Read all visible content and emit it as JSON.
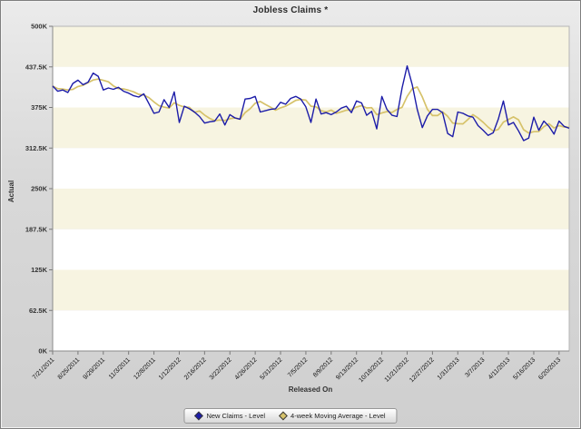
{
  "title": "Jobless Claims *",
  "x_axis_label": "Released On",
  "y_axis_label": "Actual",
  "colors": {
    "new_claims": "#1c1ca8",
    "moving_average": "#d6c26a",
    "band_fill": "#f7f4e1",
    "plot_bg": "#ffffff",
    "plot_border": "#b5b5b5",
    "axis": "#7a7a7a",
    "frame_bg": "#d9d9d9",
    "text": "#333333"
  },
  "legend": {
    "items": [
      {
        "label": "New Claims - Level",
        "color": "#1c1ca8"
      },
      {
        "label": "4-week Moving Average - Level",
        "color": "#d6c26a"
      }
    ]
  },
  "chart_data": {
    "type": "line",
    "title": "Jobless Claims *",
    "xlabel": "Released On",
    "ylabel": "Actual",
    "value_unit": "thousands (K)",
    "ylim": [
      0,
      500
    ],
    "y_ticks": [
      "0K",
      "62.5K",
      "125K",
      "187.5K",
      "250K",
      "312.5K",
      "375K",
      "437.5K",
      "500K"
    ],
    "y_tick_step": 62.5,
    "x_tick_every": 5,
    "grid": "horizontal-bands",
    "legend_position": "bottom",
    "x": [
      "7/21/2011",
      "7/28/2011",
      "8/4/2011",
      "8/11/2011",
      "8/18/2011",
      "8/25/2011",
      "9/1/2011",
      "9/8/2011",
      "9/15/2011",
      "9/22/2011",
      "9/29/2011",
      "10/6/2011",
      "10/13/2011",
      "10/20/2011",
      "10/27/2011",
      "11/3/2011",
      "11/10/2011",
      "11/17/2011",
      "11/24/2011",
      "12/1/2011",
      "12/8/2011",
      "12/15/2011",
      "12/22/2011",
      "12/29/2011",
      "1/5/2012",
      "1/12/2012",
      "1/19/2012",
      "1/26/2012",
      "2/2/2012",
      "2/9/2012",
      "2/16/2012",
      "2/23/2012",
      "3/1/2012",
      "3/8/2012",
      "3/15/2012",
      "3/22/2012",
      "3/29/2012",
      "4/5/2012",
      "4/12/2012",
      "4/19/2012",
      "4/26/2012",
      "5/3/2012",
      "5/10/2012",
      "5/17/2012",
      "5/24/2012",
      "5/31/2012",
      "6/7/2012",
      "6/14/2012",
      "6/21/2012",
      "6/28/2012",
      "7/5/2012",
      "7/12/2012",
      "7/19/2012",
      "7/26/2012",
      "8/2/2012",
      "8/9/2012",
      "8/16/2012",
      "8/23/2012",
      "8/30/2012",
      "9/6/2012",
      "9/13/2012",
      "9/20/2012",
      "9/27/2012",
      "10/4/2012",
      "10/11/2012",
      "10/18/2012",
      "10/25/2012",
      "11/1/2012",
      "11/8/2012",
      "11/15/2012",
      "11/21/2012",
      "11/29/2012",
      "12/6/2012",
      "12/13/2012",
      "12/20/2012",
      "12/27/2012",
      "1/3/2013",
      "1/10/2013",
      "1/17/2013",
      "1/24/2013",
      "1/31/2013",
      "2/7/2013",
      "2/14/2013",
      "2/21/2013",
      "2/28/2013",
      "3/7/2013",
      "3/14/2013",
      "3/21/2013",
      "3/28/2013",
      "4/4/2013",
      "4/11/2013",
      "4/18/2013",
      "4/25/2013",
      "5/2/2013",
      "5/9/2013",
      "5/16/2013",
      "5/23/2013",
      "5/30/2013",
      "6/6/2013",
      "6/13/2013",
      "6/20/2013",
      "6/27/2013",
      "7/4/2013"
    ],
    "series": [
      {
        "name": "New Claims - Level",
        "color": "#1c1ca8",
        "values": [
          408,
          400,
          402,
          398,
          412,
          417,
          410,
          414,
          428,
          423,
          402,
          405,
          403,
          406,
          400,
          397,
          393,
          391,
          396,
          381,
          366,
          368,
          387,
          375,
          399,
          352,
          377,
          373,
          368,
          361,
          351,
          353,
          354,
          365,
          348,
          364,
          359,
          357,
          388,
          389,
          392,
          368,
          370,
          372,
          373,
          383,
          380,
          389,
          392,
          388,
          376,
          352,
          388,
          365,
          367,
          364,
          368,
          374,
          377,
          367,
          385,
          382,
          363,
          369,
          342,
          392,
          372,
          363,
          361,
          405,
          439,
          410,
          372,
          344,
          362,
          372,
          372,
          367,
          335,
          330,
          368,
          366,
          362,
          360,
          347,
          340,
          332,
          336,
          357,
          385,
          348,
          352,
          339,
          324,
          328,
          360,
          340,
          354,
          346,
          334,
          354,
          346,
          343
        ]
      },
      {
        "name": "4-week Moving Average - Level",
        "color": "#d6c26a",
        "derived_from": "New Claims - Level",
        "window": 4
      }
    ]
  }
}
